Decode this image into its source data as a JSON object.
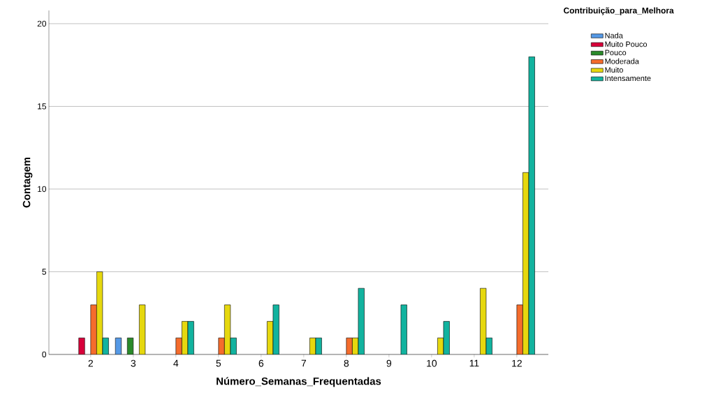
{
  "chart_data": {
    "type": "bar",
    "xlabel": "Número_Semanas_Frequentadas",
    "ylabel": "Contagem",
    "legend_title": "Contribuição_para_Melhora",
    "categories": [
      "2",
      "3",
      "4",
      "5",
      "6",
      "7",
      "8",
      "9",
      "10",
      "11",
      "12"
    ],
    "series": [
      {
        "name": "Nada",
        "color": "#5599e6",
        "values": [
          null,
          1,
          null,
          null,
          null,
          null,
          null,
          null,
          null,
          null,
          null
        ]
      },
      {
        "name": "Muito Pouco",
        "color": "#d8003a",
        "values": [
          1,
          null,
          null,
          null,
          null,
          null,
          null,
          null,
          null,
          null,
          null
        ]
      },
      {
        "name": "Pouco",
        "color": "#2a8a2a",
        "values": [
          null,
          1,
          null,
          null,
          null,
          null,
          null,
          null,
          null,
          null,
          null
        ]
      },
      {
        "name": "Moderada",
        "color": "#f56c2c",
        "values": [
          3,
          null,
          1,
          1,
          null,
          null,
          1,
          null,
          null,
          null,
          3
        ]
      },
      {
        "name": "Muito",
        "color": "#e6d80e",
        "values": [
          5,
          3,
          2,
          3,
          2,
          1,
          1,
          null,
          1,
          4,
          11
        ]
      },
      {
        "name": "Intensamente",
        "color": "#12b39f",
        "values": [
          1,
          null,
          2,
          1,
          3,
          1,
          4,
          3,
          2,
          1,
          18
        ]
      }
    ],
    "ylim": [
      0,
      20.8
    ],
    "yticks": [
      0,
      5,
      10,
      15,
      20
    ],
    "grid": "y",
    "legend": "top right"
  }
}
